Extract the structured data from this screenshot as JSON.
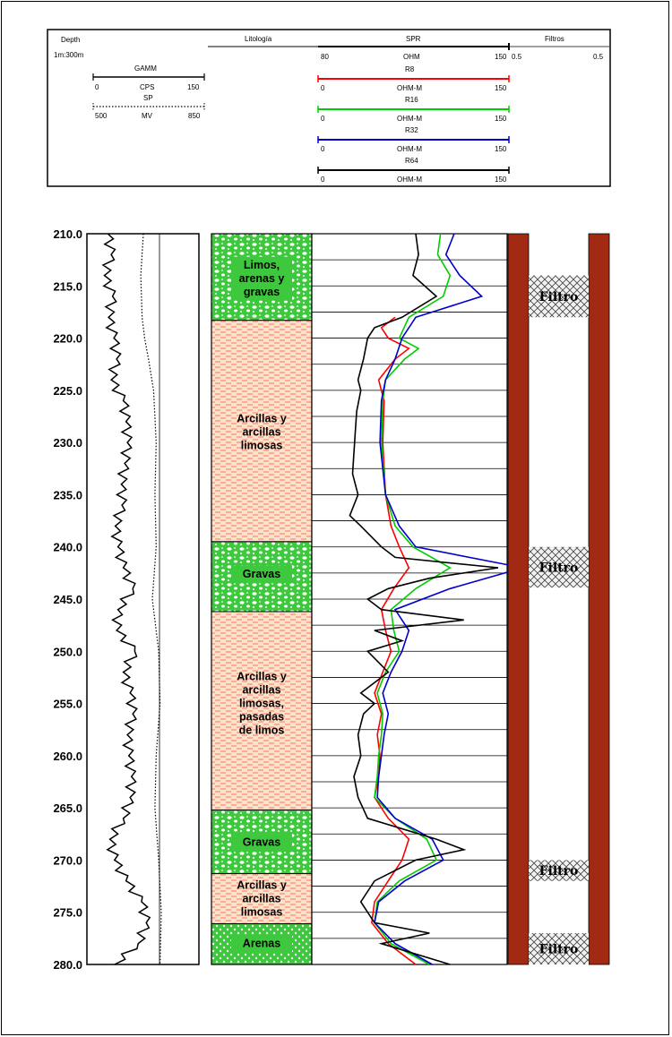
{
  "header": {
    "depth_label": "Depth",
    "scale_label": "1m:300m",
    "litologia_label": "Litología",
    "spr_label": "SPR",
    "filtros_label": "Filtros",
    "gamm": {
      "name": "GAMM",
      "min": "0",
      "unit": "CPS",
      "max": "150",
      "color": "#000000"
    },
    "sp": {
      "name": "SP",
      "min": "500",
      "unit": "MV",
      "max": "850",
      "color": "#000000"
    },
    "ohm": {
      "min": "80",
      "unit": "OHM",
      "max": "150"
    },
    "filtros_min": "0.5",
    "filtros_max": "0.5",
    "resistivity_curves": [
      {
        "name": "R8",
        "min": "0",
        "unit": "OHM-M",
        "max": "150",
        "color": "#ff0000"
      },
      {
        "name": "R16",
        "min": "0",
        "unit": "OHM-M",
        "max": "150",
        "color": "#00cc00"
      },
      {
        "name": "R32",
        "min": "0",
        "unit": "OHM-M",
        "max": "150",
        "color": "#0000cc"
      },
      {
        "name": "R64",
        "min": "0",
        "unit": "OHM-M",
        "max": "150",
        "color": "#000000"
      }
    ]
  },
  "depth_track": {
    "labels": [
      "210.0",
      "215.0",
      "220.0",
      "225.0",
      "230.0",
      "235.0",
      "240.0",
      "245.0",
      "250.0",
      "255.0",
      "260.0",
      "265.0",
      "270.0",
      "275.0",
      "280.0"
    ],
    "top_depth": 210,
    "bottom_depth": 280
  },
  "lithology": [
    {
      "top": 210.0,
      "bottom": 218.3,
      "lines": [
        "Limos,",
        "arenas y",
        "gravas"
      ],
      "type": "gravel",
      "label_depth": 214.3
    },
    {
      "top": 218.3,
      "bottom": 239.5,
      "lines": [
        "Arcillas y",
        "arcillas",
        "limosas"
      ],
      "type": "clay",
      "label_depth": 229.0
    },
    {
      "top": 239.5,
      "bottom": 246.2,
      "lines": [
        "Gravas"
      ],
      "type": "gravel",
      "label_depth": 242.6
    },
    {
      "top": 246.2,
      "bottom": 265.2,
      "lines": [
        "Arcillas y",
        "arcillas",
        "limosas,",
        "pasadas",
        "de limos"
      ],
      "type": "clay",
      "label_depth": 255.0
    },
    {
      "top": 265.2,
      "bottom": 271.3,
      "lines": [
        "Gravas"
      ],
      "type": "gravel",
      "label_depth": 268.3
    },
    {
      "top": 271.3,
      "bottom": 276.1,
      "lines": [
        "Arcillas y",
        "arcillas",
        "limosas"
      ],
      "type": "clay",
      "label_depth": 273.7
    },
    {
      "top": 276.1,
      "bottom": 280.0,
      "lines": [
        "Arenas"
      ],
      "type": "sand",
      "label_depth": 278.0
    }
  ],
  "filters": [
    {
      "label": "Filtro",
      "top": 214.0,
      "bottom": 218.0
    },
    {
      "label": "Filtro",
      "top": 240.0,
      "bottom": 243.9
    },
    {
      "label": "Filtro",
      "top": 270.0,
      "bottom": 272.0
    },
    {
      "label": "Filtro",
      "top": 277.0,
      "bottom": 280.0
    }
  ],
  "colors": {
    "gravel_fill": "#3ec83e",
    "clay_fill": "#fbe3c8",
    "clay_dash": "#ff6f6f",
    "casing": "#a32a12"
  },
  "chart_data": {
    "type": "line",
    "depth_range": [
      210,
      280
    ],
    "series": [
      {
        "name": "GAMM",
        "color": "#000000",
        "depth": [
          210,
          212,
          214,
          216,
          218,
          220,
          222,
          224,
          226,
          228,
          230,
          232,
          234,
          236,
          238,
          240,
          242,
          244,
          246,
          248,
          250,
          252,
          254,
          256,
          258,
          260,
          262,
          264,
          266,
          268,
          270,
          272,
          274,
          276,
          278,
          280
        ],
        "values": [
          15,
          20,
          10,
          22,
          16,
          24,
          28,
          20,
          38,
          42,
          44,
          40,
          35,
          36,
          26,
          30,
          38,
          52,
          30,
          28,
          55,
          38,
          48,
          52,
          44,
          46,
          50,
          48,
          38,
          18,
          25,
          42,
          65,
          72,
          60,
          25
        ]
      },
      {
        "name": "SP",
        "color": "#000000",
        "depth": [
          210,
          214,
          218,
          220,
          222,
          225,
          230,
          235,
          240,
          245,
          250,
          255,
          260,
          265,
          270,
          275,
          280
        ],
        "values": [
          640,
          630,
          635,
          645,
          660,
          680,
          690,
          685,
          690,
          675,
          700,
          705,
          690,
          685,
          700,
          710,
          705
        ]
      },
      {
        "name": "R8",
        "color": "#ff0000",
        "depth": [
          218,
          219,
          220,
          221,
          222,
          224,
          226,
          230,
          235,
          238,
          240,
          242,
          244,
          246,
          248,
          250,
          252,
          254,
          256,
          258,
          260,
          262,
          264,
          266,
          268,
          270,
          272,
          274,
          276,
          278,
          280
        ],
        "values": [
          45,
          35,
          40,
          55,
          45,
          33,
          37,
          36,
          38,
          42,
          48,
          55,
          44,
          35,
          38,
          42,
          36,
          30,
          35,
          32,
          34,
          33,
          30,
          40,
          55,
          50,
          40,
          30,
          28,
          40,
          60
        ]
      },
      {
        "name": "R16",
        "color": "#00cc00",
        "depth": [
          210,
          212,
          214,
          216,
          218,
          220,
          221,
          222,
          224,
          226,
          230,
          235,
          238,
          240,
          242,
          244,
          246,
          248,
          250,
          252,
          254,
          256,
          258,
          260,
          262,
          264,
          266,
          268,
          270,
          272,
          274,
          276,
          278,
          280
        ],
        "values": [
          78,
          76,
          85,
          80,
          55,
          48,
          62,
          52,
          38,
          36,
          35,
          38,
          45,
          58,
          85,
          60,
          42,
          44,
          48,
          38,
          32,
          36,
          35,
          33,
          32,
          30,
          45,
          68,
          75,
          48,
          32,
          30,
          42,
          70
        ]
      },
      {
        "name": "R32",
        "color": "#0000cc",
        "depth": [
          210,
          212,
          214,
          216,
          218,
          220,
          222,
          224,
          226,
          230,
          235,
          238,
          240,
          242,
          244,
          246,
          248,
          250,
          252,
          254,
          256,
          258,
          260,
          262,
          264,
          266,
          268,
          270,
          272,
          274,
          276,
          278,
          280
        ],
        "values": [
          88,
          82,
          92,
          108,
          60,
          50,
          45,
          38,
          35,
          34,
          38,
          48,
          60,
          138,
          85,
          45,
          55,
          50,
          42,
          36,
          40,
          37,
          35,
          33,
          32,
          45,
          72,
          80,
          52,
          33,
          30,
          45,
          72
        ]
      },
      {
        "name": "R64",
        "color": "#000000",
        "depth": [
          210,
          212,
          214,
          216,
          218,
          219,
          220,
          222,
          224,
          225,
          227,
          229,
          231,
          233,
          235,
          237,
          238,
          240,
          241,
          242,
          243,
          244,
          245,
          246,
          247,
          248,
          249,
          250,
          252,
          254,
          255,
          256,
          258,
          260,
          262,
          264,
          266,
          268,
          269,
          270,
          272,
          274,
          276,
          277,
          278,
          280
        ],
        "values": [
          60,
          62,
          58,
          75,
          50,
          30,
          25,
          22,
          18,
          20,
          17,
          16,
          15,
          14,
          18,
          12,
          20,
          35,
          45,
          120,
          70,
          40,
          25,
          35,
          95,
          30,
          50,
          25,
          40,
          20,
          30,
          22,
          18,
          20,
          15,
          18,
          25,
          75,
          95,
          60,
          30,
          20,
          30,
          70,
          35,
          85
        ]
      }
    ]
  }
}
